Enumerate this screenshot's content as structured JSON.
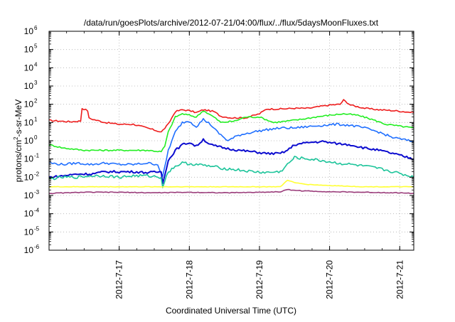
{
  "chart_data": {
    "type": "line",
    "title": "/data/run/goesPlots/archive/2012-07-21/04:00/flux/../flux/5daysMoonFluxes.txt",
    "xlabel": "Coordinated Universal Time (UTC)",
    "ylabel": {
      "base": "protons/cm",
      "sup": "2",
      "rest": "-s-sr-MeV"
    },
    "yscale": "log",
    "ylim_exp": [
      -6,
      6
    ],
    "yticks": [
      {
        "exp": "-6"
      },
      {
        "exp": "-5"
      },
      {
        "exp": "-4"
      },
      {
        "exp": "-3"
      },
      {
        "exp": "-2"
      },
      {
        "exp": "-1"
      },
      {
        "exp": "0"
      },
      {
        "exp": "1"
      },
      {
        "exp": "2"
      },
      {
        "exp": "3"
      },
      {
        "exp": "4"
      },
      {
        "exp": "5"
      },
      {
        "exp": "6"
      }
    ],
    "xlim_days": [
      0,
      5.2
    ],
    "xticks": [
      {
        "label": "2012-7-17",
        "day": 1
      },
      {
        "label": "2012-7-18",
        "day": 2
      },
      {
        "label": "2012-7-19",
        "day": 3
      },
      {
        "label": "2012-7-20",
        "day": 4
      },
      {
        "label": "2012-7-21",
        "day": 5
      }
    ],
    "grid": true,
    "series": [
      {
        "color": "#ee1c1c",
        "width": 1.6,
        "points": [
          [
            0,
            13
          ],
          [
            0.3,
            11
          ],
          [
            0.45,
            12
          ],
          [
            0.47,
            60
          ],
          [
            0.55,
            45
          ],
          [
            0.57,
            17
          ],
          [
            0.8,
            10
          ],
          [
            1,
            8
          ],
          [
            1.2,
            8
          ],
          [
            1.4,
            5
          ],
          [
            1.6,
            3
          ],
          [
            1.7,
            8
          ],
          [
            1.8,
            40
          ],
          [
            1.9,
            50
          ],
          [
            2,
            45
          ],
          [
            2.1,
            35
          ],
          [
            2.2,
            50
          ],
          [
            2.35,
            40
          ],
          [
            2.45,
            22
          ],
          [
            2.6,
            18
          ],
          [
            2.8,
            18
          ],
          [
            3,
            30
          ],
          [
            3.1,
            55
          ],
          [
            3.3,
            55
          ],
          [
            3.5,
            60
          ],
          [
            3.7,
            60
          ],
          [
            3.9,
            80
          ],
          [
            4,
            90
          ],
          [
            4.15,
            100
          ],
          [
            4.2,
            170
          ],
          [
            4.3,
            90
          ],
          [
            4.5,
            60
          ],
          [
            4.7,
            50
          ],
          [
            4.9,
            45
          ],
          [
            5.2,
            35
          ]
        ]
      },
      {
        "color": "#22ee22",
        "width": 1.6,
        "points": [
          [
            0,
            0.6
          ],
          [
            0.1,
            0.5
          ],
          [
            0.2,
            0.4
          ],
          [
            0.5,
            0.3
          ],
          [
            0.8,
            0.3
          ],
          [
            1,
            0.3
          ],
          [
            1.2,
            0.3
          ],
          [
            1.4,
            0.3
          ],
          [
            1.6,
            0.25
          ],
          [
            1.65,
            0.5
          ],
          [
            1.7,
            3
          ],
          [
            1.8,
            20
          ],
          [
            1.9,
            30
          ],
          [
            2,
            25
          ],
          [
            2.1,
            20
          ],
          [
            2.2,
            45
          ],
          [
            2.35,
            20
          ],
          [
            2.45,
            10
          ],
          [
            2.65,
            12
          ],
          [
            2.8,
            20
          ],
          [
            3,
            20
          ],
          [
            3.2,
            10
          ],
          [
            3.4,
            12
          ],
          [
            3.6,
            15
          ],
          [
            3.8,
            20
          ],
          [
            4,
            25
          ],
          [
            4.2,
            30
          ],
          [
            4.4,
            25
          ],
          [
            4.6,
            15
          ],
          [
            4.8,
            8
          ],
          [
            5.2,
            5
          ]
        ]
      },
      {
        "color": "#1f6fff",
        "width": 1.6,
        "points": [
          [
            0,
            0.06
          ],
          [
            0.2,
            0.05
          ],
          [
            0.4,
            0.06
          ],
          [
            0.6,
            0.05
          ],
          [
            0.8,
            0.06
          ],
          [
            1,
            0.05
          ],
          [
            1.2,
            0.05
          ],
          [
            1.4,
            0.06
          ],
          [
            1.55,
            0.05
          ],
          [
            1.62,
            0.01
          ],
          [
            1.7,
            0.3
          ],
          [
            1.8,
            3
          ],
          [
            1.9,
            10
          ],
          [
            2,
            12
          ],
          [
            2.1,
            6
          ],
          [
            2.2,
            15
          ],
          [
            2.3,
            8
          ],
          [
            2.4,
            3
          ],
          [
            2.55,
            1
          ],
          [
            2.7,
            2
          ],
          [
            2.9,
            3
          ],
          [
            3.1,
            4
          ],
          [
            3.3,
            5
          ],
          [
            3.5,
            5
          ],
          [
            3.7,
            6
          ],
          [
            3.9,
            7
          ],
          [
            4.1,
            8
          ],
          [
            4.3,
            7
          ],
          [
            4.5,
            5
          ],
          [
            4.7,
            3
          ],
          [
            4.9,
            1.5
          ],
          [
            5.2,
            0.9
          ]
        ]
      },
      {
        "color": "#0b0bcf",
        "width": 2.0,
        "points": [
          [
            0,
            0.01
          ],
          [
            0.2,
            0.012
          ],
          [
            0.4,
            0.015
          ],
          [
            0.6,
            0.015
          ],
          [
            0.8,
            0.02
          ],
          [
            1,
            0.02
          ],
          [
            1.2,
            0.02
          ],
          [
            1.4,
            0.018
          ],
          [
            1.6,
            0.02
          ],
          [
            1.62,
            0.005
          ],
          [
            1.7,
            0.08
          ],
          [
            1.8,
            0.3
          ],
          [
            1.9,
            0.6
          ],
          [
            2,
            0.8
          ],
          [
            2.1,
            0.5
          ],
          [
            2.2,
            1.2
          ],
          [
            2.3,
            0.6
          ],
          [
            2.5,
            0.4
          ],
          [
            2.7,
            0.3
          ],
          [
            2.9,
            0.25
          ],
          [
            3.1,
            0.2
          ],
          [
            3.3,
            0.2
          ],
          [
            3.4,
            0.3
          ],
          [
            3.5,
            0.6
          ],
          [
            3.7,
            0.8
          ],
          [
            3.9,
            0.9
          ],
          [
            4.1,
            0.7
          ],
          [
            4.3,
            0.6
          ],
          [
            4.5,
            0.4
          ],
          [
            4.7,
            0.3
          ],
          [
            4.9,
            0.2
          ],
          [
            5.2,
            0.1
          ]
        ]
      },
      {
        "color": "#1cc49a",
        "width": 1.6,
        "points": [
          [
            0,
            0.008
          ],
          [
            0.2,
            0.01
          ],
          [
            0.4,
            0.01
          ],
          [
            0.6,
            0.012
          ],
          [
            0.8,
            0.012
          ],
          [
            1,
            0.01
          ],
          [
            1.2,
            0.012
          ],
          [
            1.4,
            0.012
          ],
          [
            1.6,
            0.01
          ],
          [
            1.62,
            0.003
          ],
          [
            1.7,
            0.02
          ],
          [
            1.8,
            0.04
          ],
          [
            1.9,
            0.06
          ],
          [
            2.1,
            0.05
          ],
          [
            2.3,
            0.04
          ],
          [
            2.5,
            0.03
          ],
          [
            2.7,
            0.025
          ],
          [
            2.9,
            0.02
          ],
          [
            3.1,
            0.018
          ],
          [
            3.3,
            0.02
          ],
          [
            3.4,
            0.05
          ],
          [
            3.5,
            0.12
          ],
          [
            3.7,
            0.1
          ],
          [
            3.9,
            0.08
          ],
          [
            4.1,
            0.06
          ],
          [
            4.3,
            0.05
          ],
          [
            4.5,
            0.04
          ],
          [
            4.7,
            0.03
          ],
          [
            4.9,
            0.02
          ],
          [
            5.2,
            0.01
          ]
        ]
      },
      {
        "color": "#ffff33",
        "width": 1.6,
        "points": [
          [
            0,
            0.003
          ],
          [
            0.5,
            0.003
          ],
          [
            1,
            0.003
          ],
          [
            1.5,
            0.003
          ],
          [
            2,
            0.003
          ],
          [
            2.5,
            0.003
          ],
          [
            3,
            0.003
          ],
          [
            3.3,
            0.003
          ],
          [
            3.4,
            0.007
          ],
          [
            3.5,
            0.005
          ],
          [
            3.7,
            0.004
          ],
          [
            4,
            0.0035
          ],
          [
            4.5,
            0.003
          ],
          [
            5,
            0.003
          ],
          [
            5.2,
            0.003
          ]
        ]
      },
      {
        "color": "#9a3c7a",
        "width": 1.6,
        "points": [
          [
            0,
            0.0013
          ],
          [
            0.5,
            0.0015
          ],
          [
            1,
            0.0015
          ],
          [
            1.5,
            0.0014
          ],
          [
            2,
            0.0015
          ],
          [
            2.5,
            0.0014
          ],
          [
            3,
            0.0015
          ],
          [
            3.3,
            0.0016
          ],
          [
            3.4,
            0.0021
          ],
          [
            3.6,
            0.0018
          ],
          [
            4,
            0.0016
          ],
          [
            4.5,
            0.0015
          ],
          [
            5,
            0.0014
          ],
          [
            5.2,
            0.0013
          ]
        ]
      }
    ]
  }
}
